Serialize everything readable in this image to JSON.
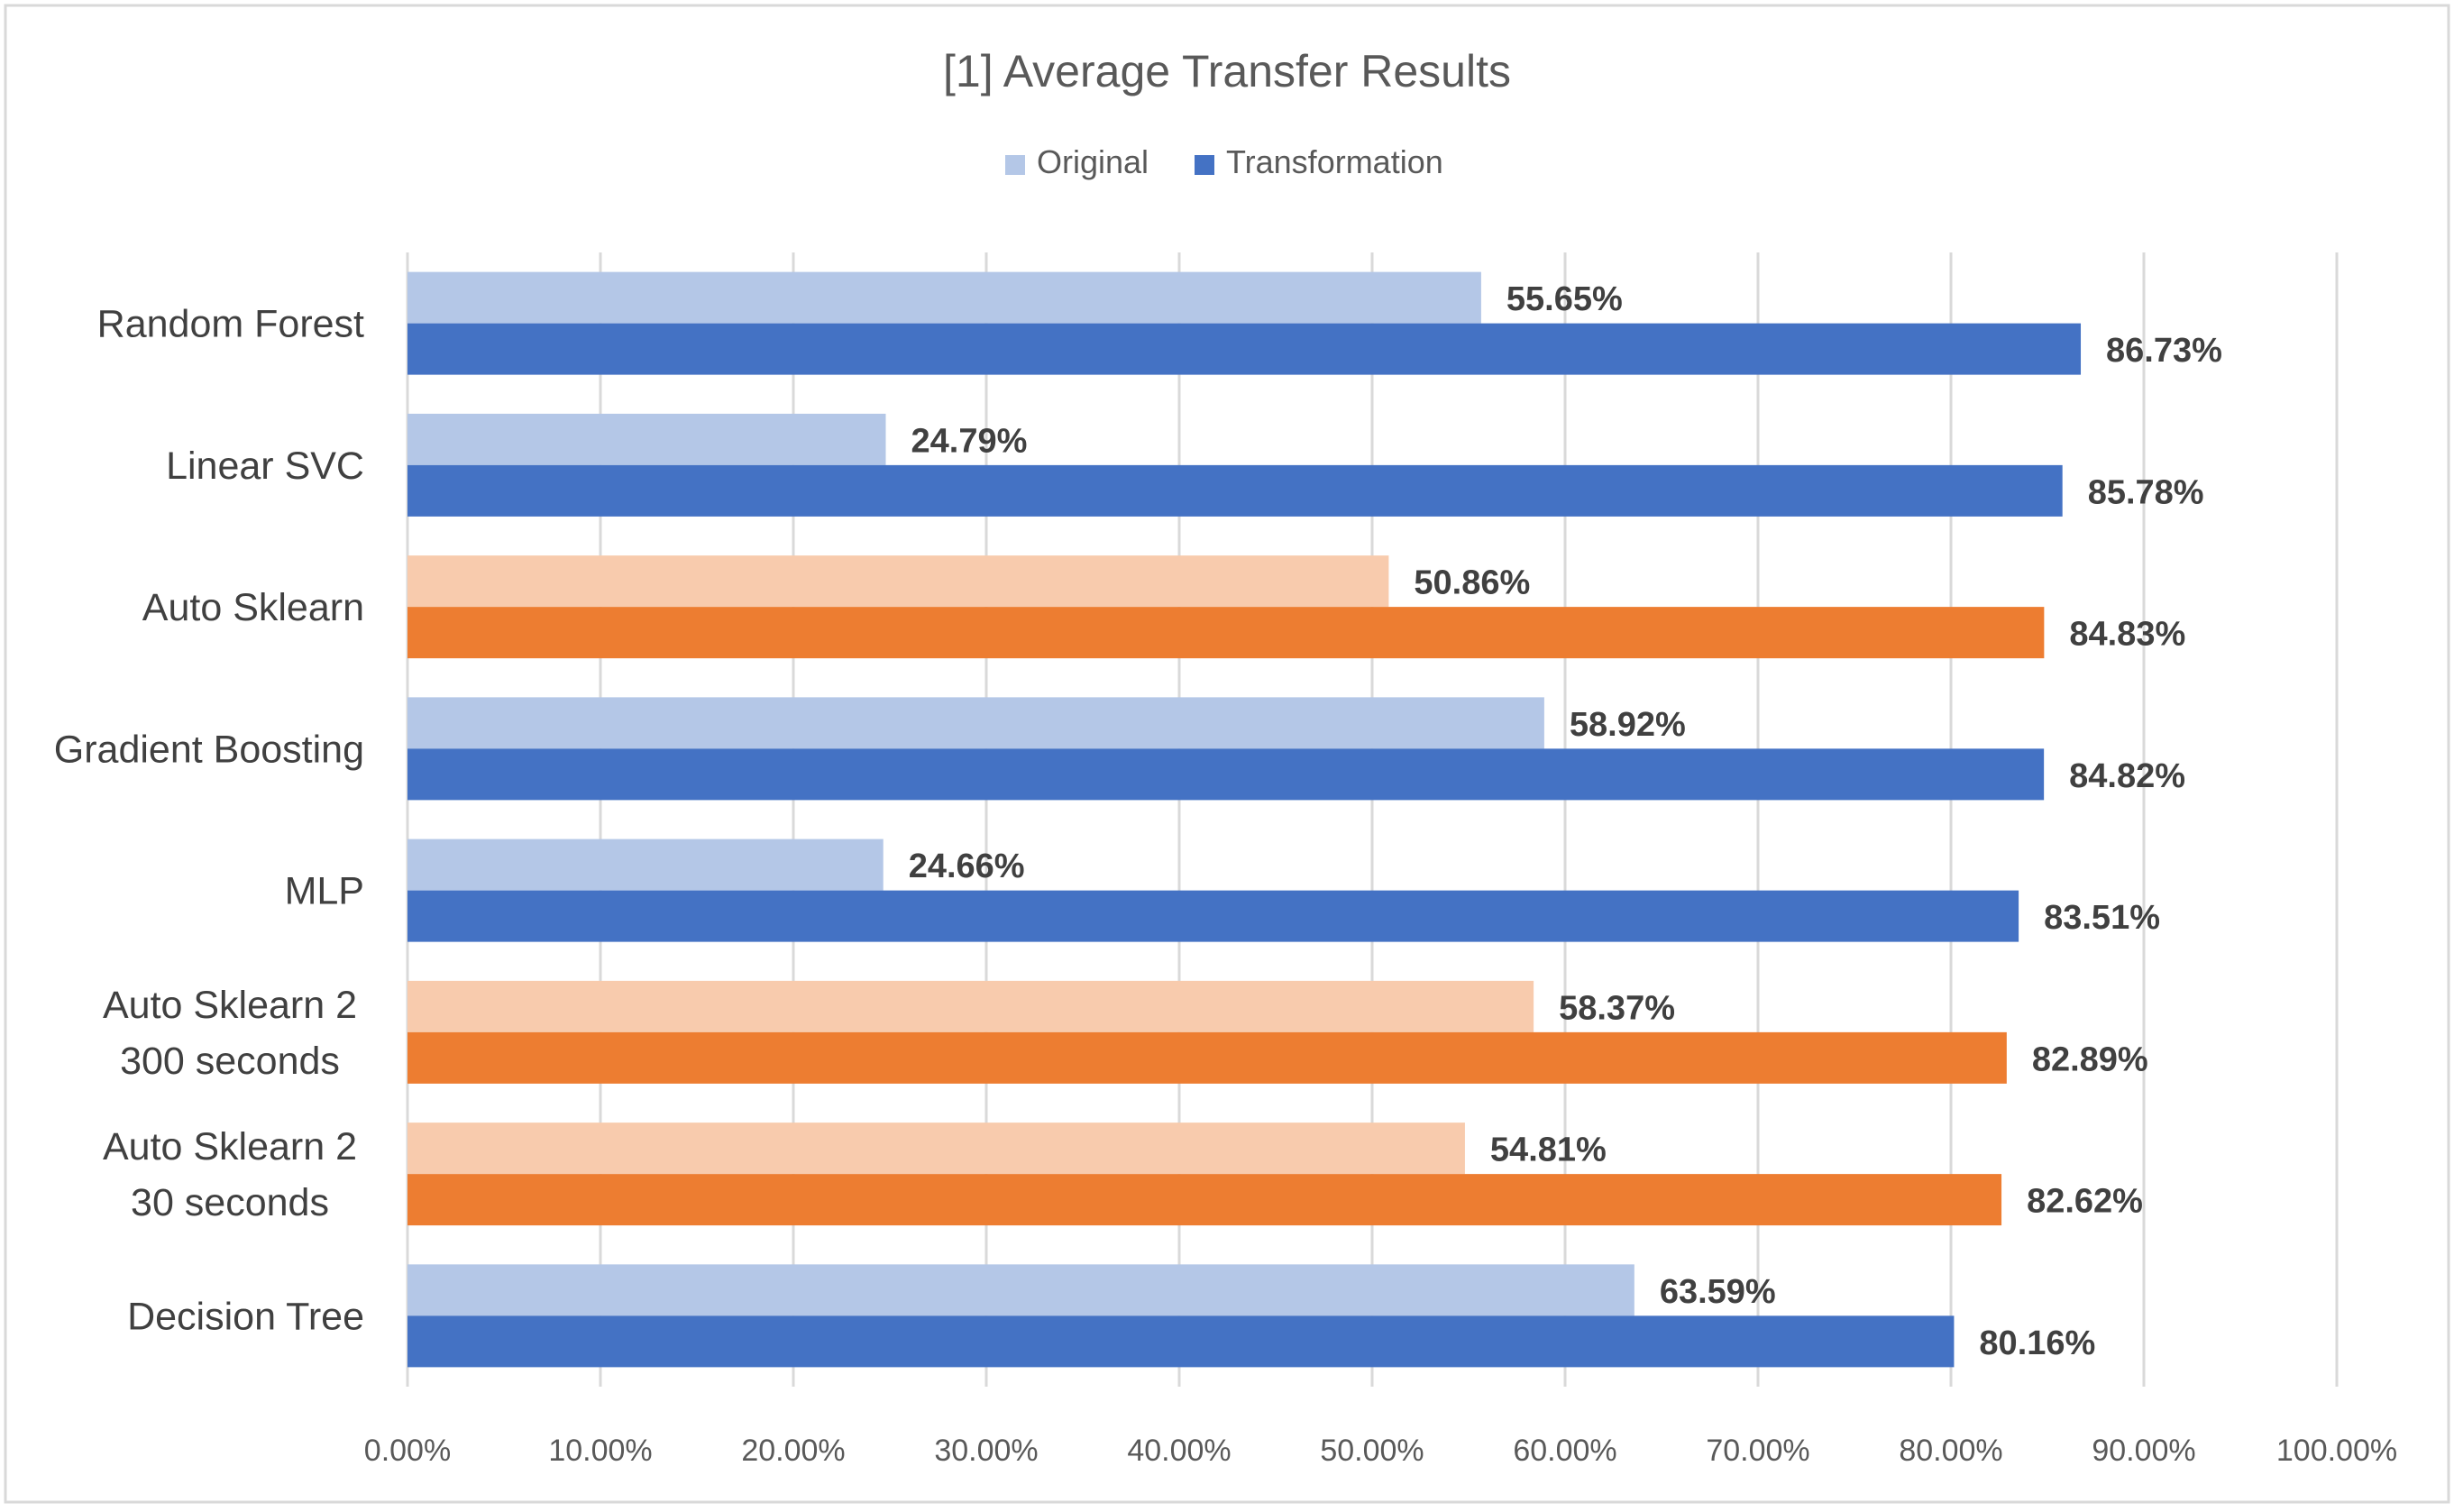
{
  "chart_data": {
    "type": "bar",
    "orientation": "horizontal",
    "title": "[1] Average Transfer Results",
    "legend": {
      "position": "top",
      "entries": [
        "Original",
        "Transformation"
      ]
    },
    "categories": [
      "Random Forest",
      "Linear SVC",
      "Auto Sklearn",
      "Gradient Boosting",
      "MLP",
      "Auto Sklearn 2 300 seconds",
      "Auto Sklearn 2 30 seconds",
      "Decision Tree"
    ],
    "category_lines": [
      [
        "Random Forest"
      ],
      [
        "Linear SVC"
      ],
      [
        "Auto Sklearn"
      ],
      [
        "Gradient Boosting"
      ],
      [
        "MLP"
      ],
      [
        "Auto Sklearn 2",
        "300 seconds"
      ],
      [
        "Auto Sklearn 2",
        "30 seconds"
      ],
      [
        "Decision Tree"
      ]
    ],
    "series": [
      {
        "name": "Original",
        "values": [
          55.65,
          24.79,
          50.86,
          58.92,
          24.66,
          58.37,
          54.81,
          63.59
        ],
        "labels": [
          "55.65%",
          "24.79%",
          "50.86%",
          "58.92%",
          "24.66%",
          "58.37%",
          "54.81%",
          "63.59%"
        ]
      },
      {
        "name": "Transformation",
        "values": [
          86.73,
          85.78,
          84.83,
          84.82,
          83.51,
          82.89,
          82.62,
          80.16
        ],
        "labels": [
          "86.73%",
          "85.78%",
          "84.83%",
          "84.82%",
          "83.51%",
          "82.89%",
          "82.62%",
          "80.16%"
        ]
      }
    ],
    "highlighted_categories": [
      2,
      5,
      6
    ],
    "xlim": [
      0,
      100
    ],
    "xticks": [
      0,
      10,
      20,
      30,
      40,
      50,
      60,
      70,
      80,
      90,
      100
    ],
    "xtick_labels": [
      "0.00%",
      "10.00%",
      "20.00%",
      "30.00%",
      "40.00%",
      "50.00%",
      "60.00%",
      "70.00%",
      "80.00%",
      "90.00%",
      "100.00%"
    ],
    "xlabel": "",
    "ylabel": "",
    "grid": {
      "vertical": true,
      "horizontal": false
    },
    "colors": {
      "original": "#B4C7E7",
      "transformation": "#4472C4",
      "original_highlight": "#F8CBAD",
      "transformation_highlight": "#ED7D31",
      "grid": "#D9D9D9",
      "border": "#D9D9D9"
    }
  }
}
